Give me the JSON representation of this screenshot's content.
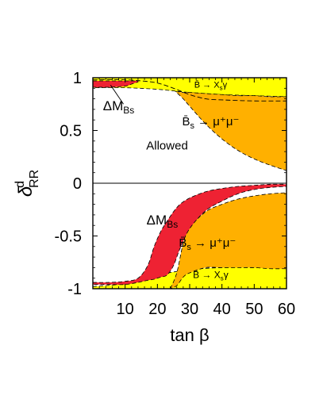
{
  "chart_data": {
    "type": "area",
    "title": "",
    "xlabel": "tan β",
    "ylabel": "δ^d_RR",
    "xlim": [
      0,
      60
    ],
    "ylim": [
      -1,
      1
    ],
    "x_ticks": [
      10,
      20,
      30,
      40,
      50,
      60
    ],
    "x_tick_labels": [
      "10",
      "20",
      "30",
      "40",
      "50",
      "60"
    ],
    "y_ticks": [
      1,
      0.5,
      0,
      -0.5,
      -1
    ],
    "y_tick_labels": [
      "1",
      "0.5",
      "0",
      "-0.5",
      "-1"
    ],
    "grid": false,
    "colors": {
      "yellow": "#FFFF00",
      "orange": "#FFB000",
      "red": "#EE2233",
      "outline": "#000000"
    },
    "series": [
      {
        "name": "B̄ → Xsγ",
        "region": "upper",
        "fill": "yellow",
        "x": [
          0,
          10,
          20,
          30,
          40,
          50,
          60
        ],
        "lower_y": [
          0.905,
          0.905,
          0.89,
          0.86,
          0.84,
          0.83,
          0.82
        ],
        "upper_y": [
          1,
          1,
          1,
          1,
          1,
          1,
          1
        ]
      },
      {
        "name": "B̄s → μ+μ−",
        "region": "upper",
        "fill": "orange",
        "x": [
          25.6,
          28,
          30,
          35,
          40,
          45,
          50,
          55,
          60
        ],
        "lower_y": [
          0.87,
          0.8,
          0.73,
          0.56,
          0.42,
          0.31,
          0.23,
          0.17,
          0.12
        ],
        "upper_y": [
          0.87,
          0.86,
          0.86,
          0.85,
          0.84,
          0.83,
          0.83,
          0.82,
          0.82
        ]
      },
      {
        "name": "ΔMBs",
        "region": "upper",
        "fill": "red",
        "x": [
          0,
          5,
          10,
          12,
          14
        ],
        "lower_y": [
          0.91,
          0.91,
          0.92,
          0.94,
          0.96
        ],
        "upper_y": [
          0.97,
          0.97,
          0.97,
          0.97,
          0.97
        ]
      },
      {
        "name": "B̄ → Xsγ",
        "region": "lower",
        "fill": "yellow",
        "x": [
          0,
          10,
          20,
          30,
          40,
          50,
          60
        ],
        "lower_y": [
          -1,
          -1,
          -1,
          -1,
          -1,
          -1,
          -1
        ],
        "upper_y": [
          -0.98,
          -0.95,
          -0.87,
          -0.82,
          -0.8,
          -0.8,
          -0.81
        ]
      },
      {
        "name": "B̄s → μ+μ−",
        "region": "lower",
        "fill": "orange",
        "x": [
          24,
          26,
          28,
          30,
          35,
          40,
          45,
          50,
          55,
          60
        ],
        "lower_y": [
          -1,
          -0.97,
          -0.89,
          -0.85,
          -0.8,
          -0.8,
          -0.8,
          -0.8,
          -0.81,
          -0.81
        ],
        "upper_y": [
          -1,
          -0.85,
          -0.57,
          -0.42,
          -0.27,
          -0.2,
          -0.15,
          -0.12,
          -0.1,
          -0.09
        ]
      },
      {
        "name": "ΔMBs",
        "region": "lower",
        "fill": "red",
        "x": [
          0,
          5,
          10,
          14,
          17,
          19,
          21,
          23,
          25,
          27,
          30,
          35,
          40,
          45,
          50,
          55,
          60
        ],
        "lower_y": [
          -0.96,
          -0.96,
          -0.96,
          -0.94,
          -0.92,
          -0.91,
          -0.89,
          -0.87,
          -0.78,
          -0.62,
          -0.43,
          -0.26,
          -0.17,
          -0.1,
          -0.06,
          -0.04,
          -0.03
        ],
        "upper_y": [
          -0.94,
          -0.94,
          -0.93,
          -0.9,
          -0.78,
          -0.6,
          -0.46,
          -0.36,
          -0.27,
          -0.2,
          -0.14,
          -0.08,
          -0.05,
          -0.03,
          -0.02,
          -0.01,
          -0.01
        ]
      }
    ],
    "curves": [
      {
        "name": "ΔMBs upper bound",
        "x": [
          0,
          10,
          15,
          20,
          25,
          30,
          35,
          40,
          50,
          60
        ],
        "y": [
          0.98,
          0.98,
          0.97,
          0.95,
          0.9,
          0.84,
          0.8,
          0.79,
          0.78,
          0.78
        ]
      }
    ],
    "annotations": [
      {
        "id": "dmbs-upper",
        "main": "ΔM",
        "sub": "Bs",
        "x": 8,
        "y": 0.69
      },
      {
        "id": "bsgamma-upper",
        "main": "B̄ → X",
        "sub": "s",
        "tail": "γ",
        "x": 36.5,
        "y": 0.905
      },
      {
        "id": "bsmumu-upper",
        "main": "B̄",
        "sub": "s",
        "tail": " → μ⁺μ⁻",
        "x": 36.5,
        "y": 0.55
      },
      {
        "id": "allowed",
        "main": "Allowed",
        "x": 23,
        "y": 0.32
      },
      {
        "id": "dmbs-lower",
        "main": "ΔM",
        "sub": "Bs",
        "x": 21.5,
        "y": -0.39
      },
      {
        "id": "bsmumu-lower",
        "main": "B̄",
        "sub": "s",
        "tail": " → μ⁺μ⁻",
        "x": 35.5,
        "y": -0.6
      },
      {
        "id": "bsgamma-lower",
        "main": "B̄ → X",
        "sub": "s",
        "tail": "γ",
        "x": 36.5,
        "y": -0.9
      }
    ]
  }
}
